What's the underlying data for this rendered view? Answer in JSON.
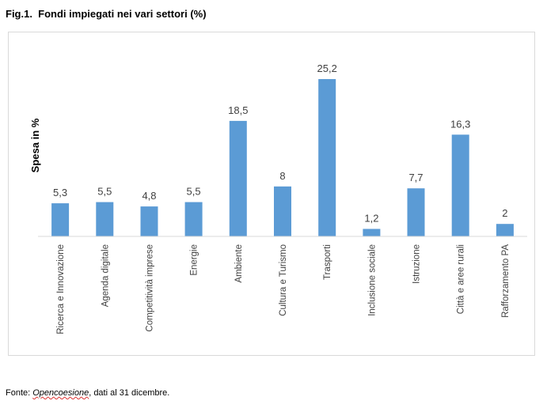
{
  "figure": {
    "title": "Fig.1.  Fondi impiegati nei vari settori (%)"
  },
  "chart_data": {
    "type": "bar",
    "title": "",
    "xlabel": "",
    "ylabel": "Spesa in %",
    "ylim": [
      0,
      25.2
    ],
    "grid": false,
    "legend": "none",
    "bar_color": "#5b9bd5",
    "categories": [
      "Ricerca e Innovazione",
      "Agenda digitale",
      "Competitività imprese",
      "Energie",
      "Ambiente",
      "Cultura e Turismo",
      "Trasporti",
      "Inclusione sociale",
      "Istruzione",
      "Città e aree rurali",
      "Rafforzamento PA"
    ],
    "values": [
      5.3,
      5.5,
      4.8,
      5.5,
      18.5,
      8,
      25.2,
      1.2,
      7.7,
      16.3,
      2
    ],
    "data_labels": [
      "5,3",
      "5,5",
      "4,8",
      "5,5",
      "18,5",
      "8",
      "25,2",
      "1,2",
      "7,7",
      "16,3",
      "2"
    ]
  },
  "source": {
    "prefix": "Fonte: ",
    "name": "Opencoesione",
    "suffix": ", dati al 31 dicembre."
  }
}
